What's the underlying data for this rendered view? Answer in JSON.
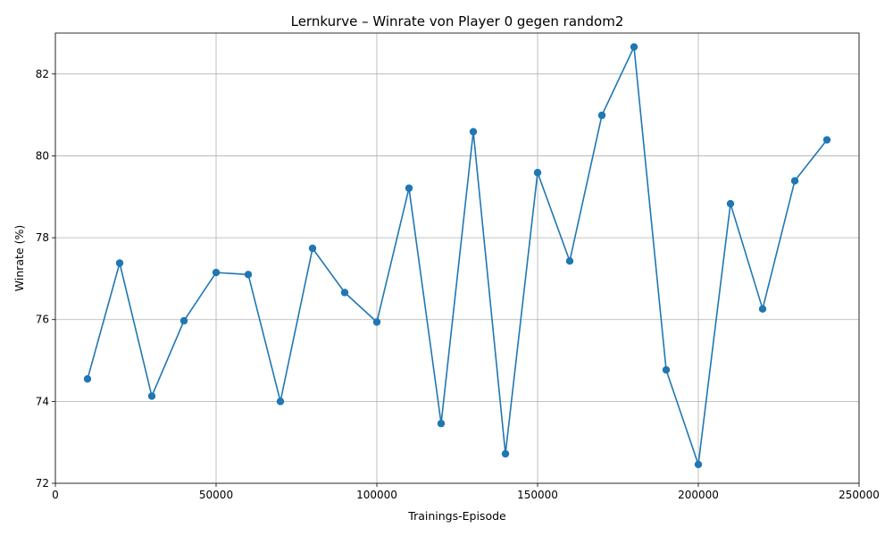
{
  "chart_data": {
    "type": "line",
    "title": "Lernkurve – Winrate von Player 0 gegen random2",
    "xlabel": "Trainings-Episode",
    "ylabel": "Winrate (%)",
    "xlim": [
      0,
      250000
    ],
    "ylim": [
      72,
      83
    ],
    "xticks": [
      0,
      50000,
      100000,
      150000,
      200000,
      250000
    ],
    "yticks": [
      72,
      74,
      76,
      78,
      80,
      82
    ],
    "grid": true,
    "marker": "circle",
    "color": "#1f77b4",
    "series": [
      {
        "x": [
          10000,
          20000,
          30000,
          40000,
          50000,
          60000,
          70000,
          80000,
          90000,
          100000,
          110000,
          120000,
          130000,
          140000,
          150000,
          160000,
          170000,
          180000,
          190000,
          200000,
          210000,
          220000,
          230000,
          240000
        ],
        "values": [
          74.55,
          77.38,
          74.13,
          75.97,
          77.15,
          77.1,
          74.0,
          77.74,
          76.66,
          75.94,
          79.21,
          73.46,
          80.59,
          72.72,
          79.59,
          77.43,
          80.99,
          82.66,
          74.77,
          72.46,
          78.83,
          76.26,
          79.39,
          80.39
        ]
      }
    ]
  }
}
